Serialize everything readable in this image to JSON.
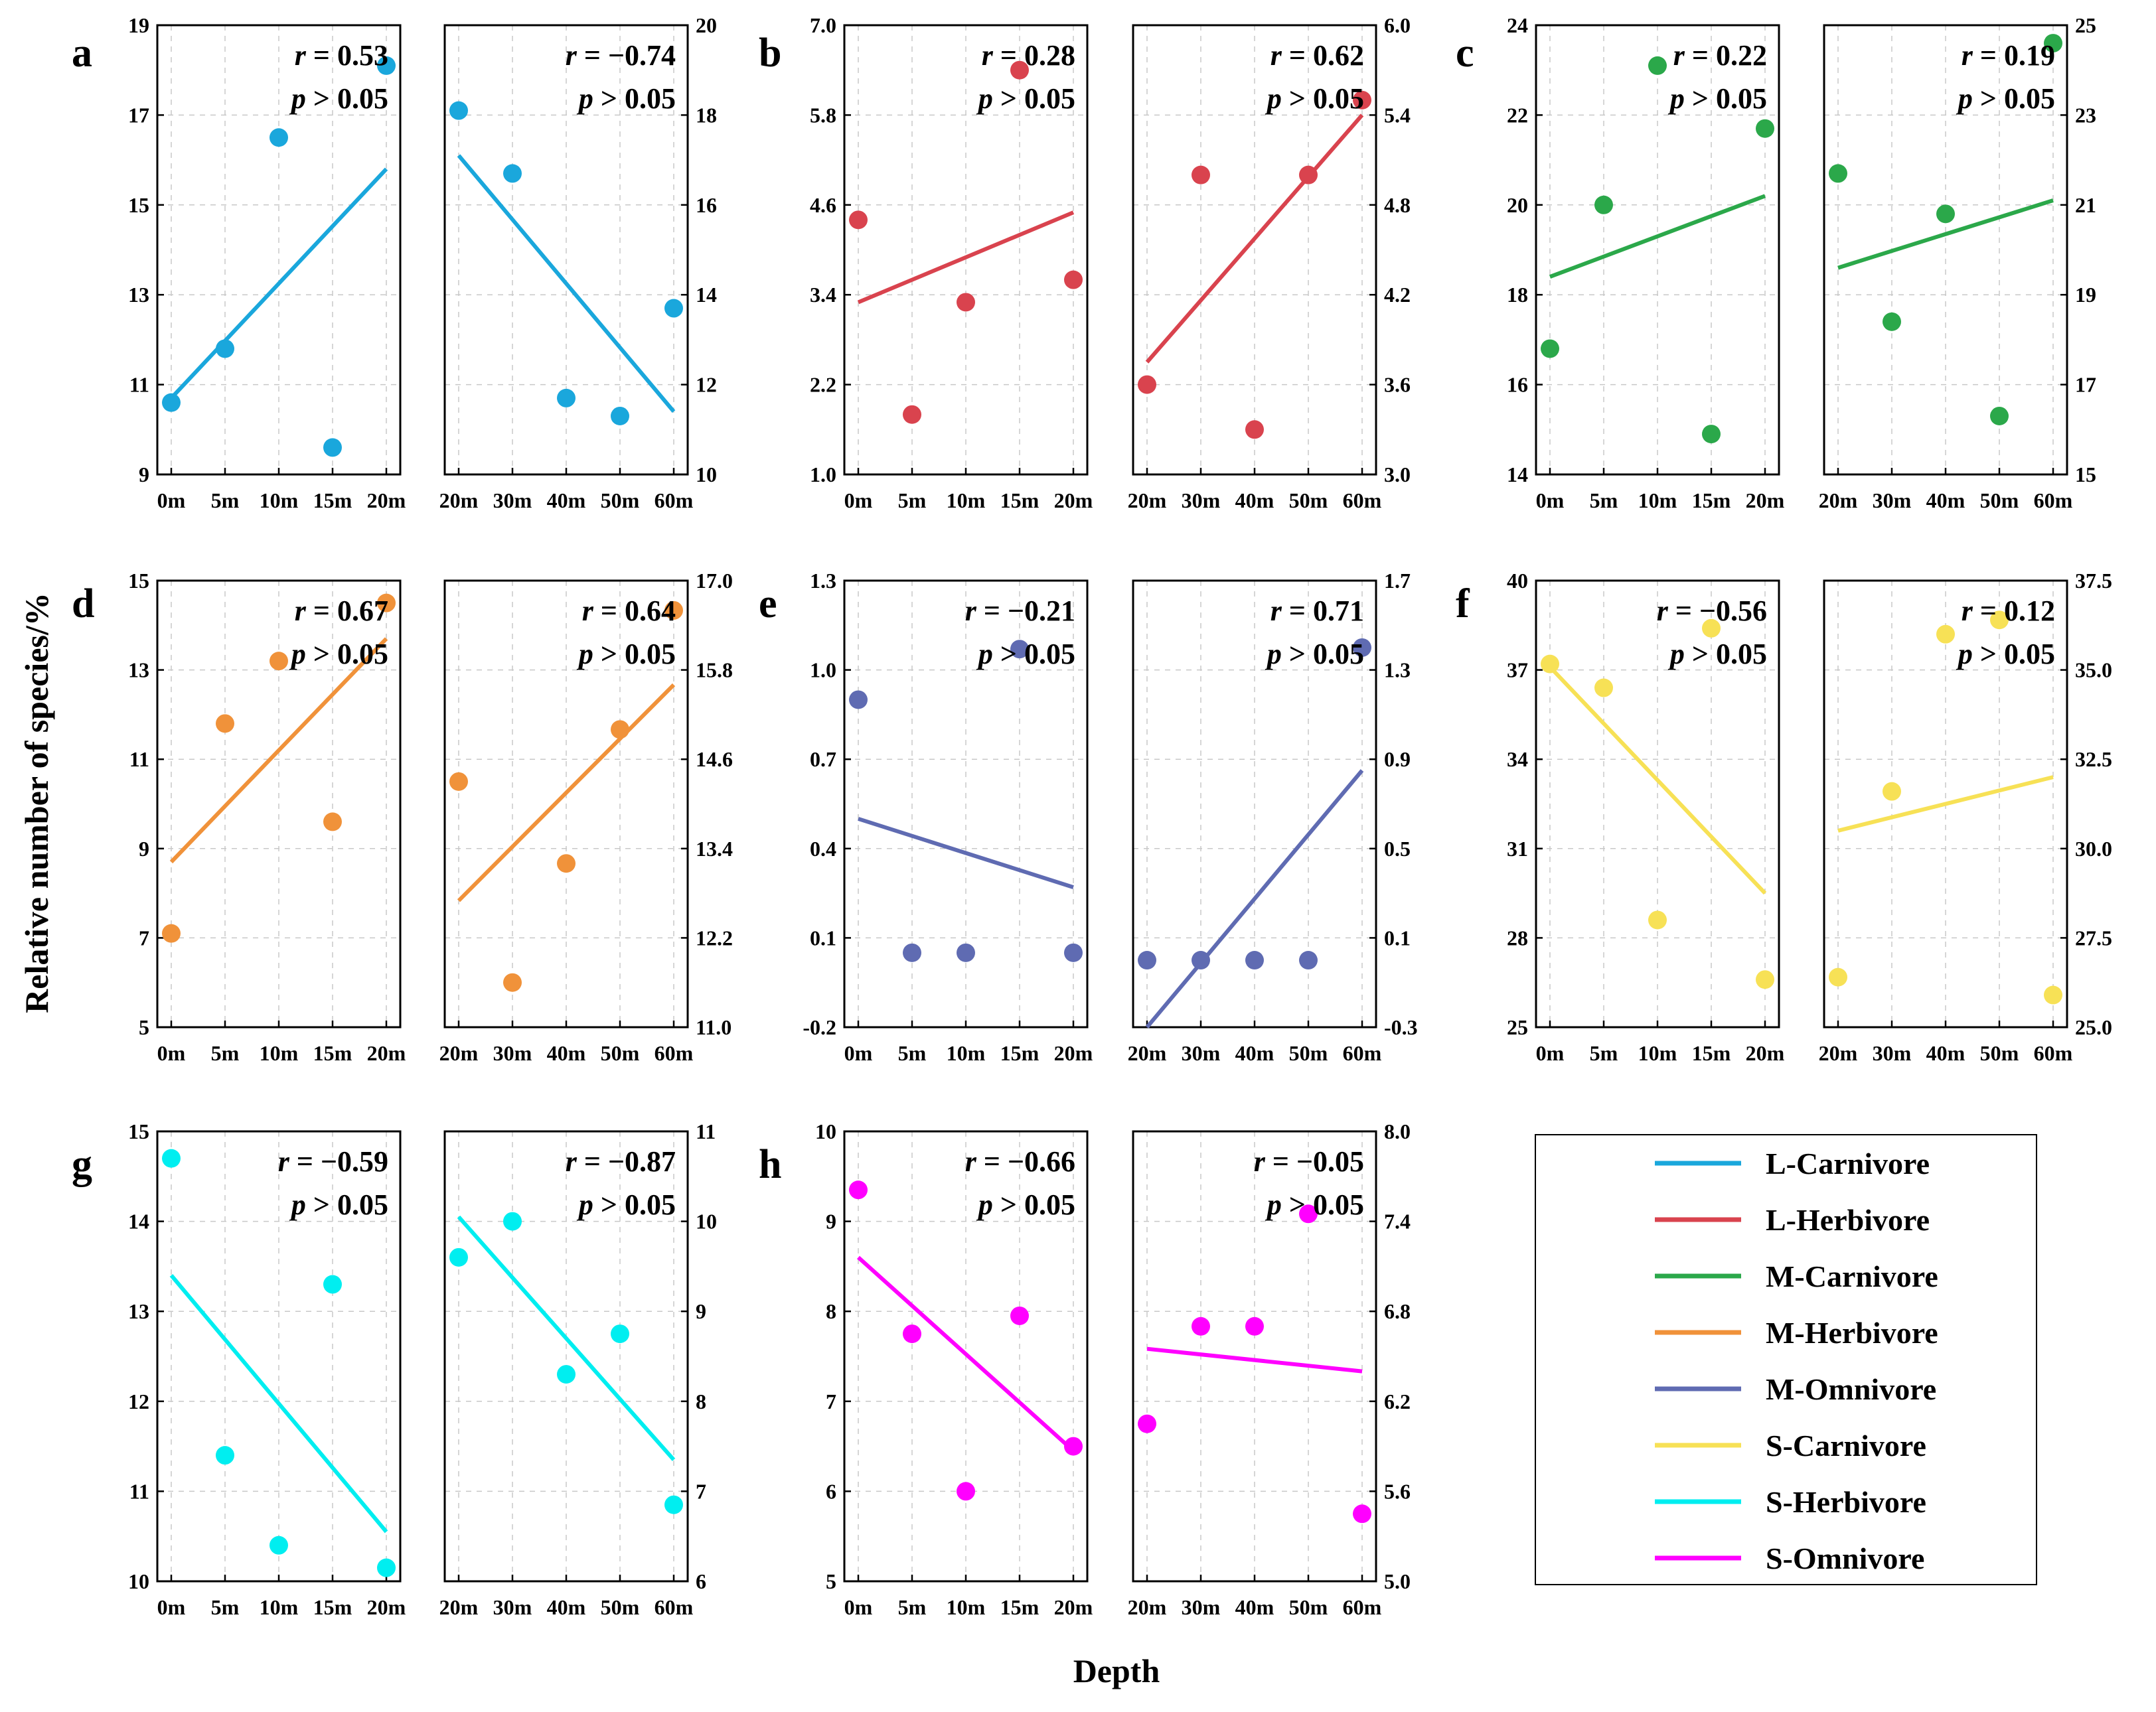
{
  "figure": {
    "ylabel": "Relative number of species/%",
    "xlabel": "Depth",
    "legend": [
      {
        "label": "L-Carnivore",
        "color": "#1aa7dc"
      },
      {
        "label": "L-Herbivore",
        "color": "#d9434e"
      },
      {
        "label": "M-Carnivore",
        "color": "#2ba84a"
      },
      {
        "label": "M-Herbivore",
        "color": "#f0923a"
      },
      {
        "label": "M-Omnivore",
        "color": "#5f6bb2"
      },
      {
        "label": "S-Carnivore",
        "color": "#f7e156"
      },
      {
        "label": "S-Herbivore",
        "color": "#00eef0"
      },
      {
        "label": "S-Omnivore",
        "color": "#ff00ff"
      }
    ]
  },
  "chart_data": [
    {
      "type": "scatter",
      "panel": "a",
      "group": "L-Carnivore",
      "side": "left",
      "color": "#1aa7dc",
      "categories": [
        "0m",
        "5m",
        "10m",
        "15m",
        "20m"
      ],
      "values": [
        10.6,
        11.8,
        16.5,
        9.6,
        18.1
      ],
      "fit": [
        10.7,
        15.8
      ],
      "ylim": [
        9,
        19
      ],
      "ticks": [
        "9",
        "11",
        "13",
        "15",
        "17",
        "19"
      ],
      "r": "r = 0.53",
      "p": "p > 0.05"
    },
    {
      "type": "scatter",
      "panel": "a",
      "group": "L-Carnivore",
      "side": "right",
      "color": "#1aa7dc",
      "categories": [
        "20m",
        "30m",
        "40m",
        "50m",
        "60m"
      ],
      "values": [
        18.1,
        16.7,
        11.7,
        11.3,
        13.7
      ],
      "fit": [
        17.1,
        11.4
      ],
      "ylim": [
        10,
        20
      ],
      "ticks": [
        "10",
        "12",
        "14",
        "16",
        "18",
        "20"
      ],
      "r": "r = −0.74",
      "p": "p > 0.05"
    },
    {
      "type": "scatter",
      "panel": "b",
      "group": "L-Herbivore",
      "side": "left",
      "color": "#d9434e",
      "categories": [
        "0m",
        "5m",
        "10m",
        "15m",
        "20m"
      ],
      "values": [
        4.4,
        1.8,
        3.3,
        6.4,
        3.6
      ],
      "fit": [
        3.3,
        4.5
      ],
      "ylim": [
        1.0,
        7.0
      ],
      "ticks": [
        "1.0",
        "2.2",
        "3.4",
        "4.6",
        "5.8",
        "7.0"
      ],
      "r": "r = 0.28",
      "p": "p > 0.05"
    },
    {
      "type": "scatter",
      "panel": "b",
      "group": "L-Herbivore",
      "side": "right",
      "color": "#d9434e",
      "categories": [
        "20m",
        "30m",
        "40m",
        "50m",
        "60m"
      ],
      "values": [
        3.6,
        5.0,
        3.3,
        5.0,
        5.5
      ],
      "fit": [
        3.75,
        5.4
      ],
      "ylim": [
        3.0,
        6.0
      ],
      "ticks": [
        "3.0",
        "3.6",
        "4.2",
        "4.8",
        "5.4",
        "6.0"
      ],
      "r": "r = 0.62",
      "p": "p > 0.05"
    },
    {
      "type": "scatter",
      "panel": "c",
      "group": "M-Carnivore",
      "side": "left",
      "color": "#2ba84a",
      "categories": [
        "0m",
        "5m",
        "10m",
        "15m",
        "20m"
      ],
      "values": [
        16.8,
        20.0,
        23.1,
        14.9,
        21.7
      ],
      "fit": [
        18.4,
        20.2
      ],
      "ylim": [
        14,
        24
      ],
      "ticks": [
        "14",
        "16",
        "18",
        "20",
        "22",
        "24"
      ],
      "r": "r = 0.22",
      "p": "p > 0.05"
    },
    {
      "type": "scatter",
      "panel": "c",
      "group": "M-Carnivore",
      "side": "right",
      "color": "#2ba84a",
      "categories": [
        "20m",
        "30m",
        "40m",
        "50m",
        "60m"
      ],
      "values": [
        21.7,
        18.4,
        20.8,
        16.3,
        24.6
      ],
      "fit": [
        19.6,
        21.1
      ],
      "ylim": [
        15,
        25
      ],
      "ticks": [
        "15",
        "17",
        "19",
        "21",
        "23",
        "25"
      ],
      "r": "r = 0.19",
      "p": "p > 0.05"
    },
    {
      "type": "scatter",
      "panel": "d",
      "group": "M-Herbivore",
      "side": "left",
      "color": "#f0923a",
      "categories": [
        "0m",
        "5m",
        "10m",
        "15m",
        "20m"
      ],
      "values": [
        7.1,
        11.8,
        13.2,
        9.6,
        14.5
      ],
      "fit": [
        8.7,
        13.7
      ],
      "ylim": [
        5,
        15
      ],
      "ticks": [
        "5",
        "7",
        "9",
        "11",
        "13",
        "15"
      ],
      "r": "r = 0.67",
      "p": "p > 0.05"
    },
    {
      "type": "scatter",
      "panel": "d",
      "group": "M-Herbivore",
      "side": "right",
      "color": "#f0923a",
      "categories": [
        "20m",
        "30m",
        "40m",
        "50m",
        "60m"
      ],
      "values": [
        14.3,
        11.6,
        13.2,
        15.0,
        16.6
      ],
      "fit": [
        12.7,
        15.6
      ],
      "ylim": [
        11.0,
        17.0
      ],
      "ticks": [
        "11.0",
        "12.2",
        "13.4",
        "14.6",
        "15.8",
        "17.0"
      ],
      "r": "r = 0.64",
      "p": "p > 0.05"
    },
    {
      "type": "scatter",
      "panel": "e",
      "group": "M-Omnivore",
      "side": "left",
      "color": "#5f6bb2",
      "categories": [
        "0m",
        "5m",
        "10m",
        "15m",
        "20m"
      ],
      "values": [
        0.9,
        0.05,
        0.05,
        1.07,
        0.05
      ],
      "fit": [
        0.5,
        0.27
      ],
      "ylim": [
        -0.2,
        1.3
      ],
      "ticks": [
        "-0.2",
        "0.1",
        "0.4",
        "0.7",
        "1.0",
        "1.3"
      ],
      "r": "r = −0.21",
      "p": "p > 0.05"
    },
    {
      "type": "scatter",
      "panel": "e",
      "group": "M-Omnivore",
      "side": "right",
      "color": "#5f6bb2",
      "categories": [
        "20m",
        "30m",
        "40m",
        "50m",
        "60m"
      ],
      "values": [
        0.0,
        0.0,
        0.0,
        0.0,
        1.4
      ],
      "fit": [
        -0.3,
        0.85
      ],
      "ylim": [
        -0.3,
        1.7
      ],
      "ticks": [
        "-0.3",
        "0.1",
        "0.5",
        "0.9",
        "1.3",
        "1.7"
      ],
      "r": "r = 0.71",
      "p": "p > 0.05"
    },
    {
      "type": "scatter",
      "panel": "f",
      "group": "S-Carnivore",
      "side": "left",
      "color": "#f7e156",
      "categories": [
        "0m",
        "5m",
        "10m",
        "15m",
        "20m"
      ],
      "values": [
        37.2,
        36.4,
        28.6,
        38.4,
        26.6
      ],
      "fit": [
        37.1,
        29.5
      ],
      "ylim": [
        25,
        40
      ],
      "ticks": [
        "25",
        "28",
        "31",
        "34",
        "37",
        "40"
      ],
      "r": "r = −0.56",
      "p": "p > 0.05"
    },
    {
      "type": "scatter",
      "panel": "f",
      "group": "S-Carnivore",
      "side": "right",
      "color": "#f7e156",
      "categories": [
        "20m",
        "30m",
        "40m",
        "50m",
        "60m"
      ],
      "values": [
        26.4,
        31.6,
        36.0,
        36.4,
        25.9
      ],
      "fit": [
        30.5,
        32.0
      ],
      "ylim": [
        25.0,
        37.5
      ],
      "ticks": [
        "25.0",
        "27.5",
        "30.0",
        "32.5",
        "35.0",
        "37.5"
      ],
      "r": "r = 0.12",
      "p": "p > 0.05"
    },
    {
      "type": "scatter",
      "panel": "g",
      "group": "S-Herbivore",
      "side": "left",
      "color": "#00eef0",
      "categories": [
        "0m",
        "5m",
        "10m",
        "15m",
        "20m"
      ],
      "values": [
        14.7,
        11.4,
        10.4,
        13.3,
        10.15
      ],
      "fit": [
        13.4,
        10.55
      ],
      "ylim": [
        10,
        15
      ],
      "ticks": [
        "10",
        "11",
        "12",
        "13",
        "14",
        "15"
      ],
      "r": "r = −0.59",
      "p": "p > 0.05"
    },
    {
      "type": "scatter",
      "panel": "g",
      "group": "S-Herbivore",
      "side": "right",
      "color": "#00eef0",
      "categories": [
        "20m",
        "30m",
        "40m",
        "50m",
        "60m"
      ],
      "values": [
        9.6,
        10.0,
        8.3,
        8.75,
        6.85
      ],
      "fit": [
        10.05,
        7.35
      ],
      "ylim": [
        6,
        11
      ],
      "ticks": [
        "6",
        "7",
        "8",
        "9",
        "10",
        "11"
      ],
      "r": "r = −0.87",
      "p": "p > 0.05"
    },
    {
      "type": "scatter",
      "panel": "h",
      "group": "S-Omnivore",
      "side": "left",
      "color": "#ff00ff",
      "categories": [
        "0m",
        "5m",
        "10m",
        "15m",
        "20m"
      ],
      "values": [
        9.35,
        7.75,
        6.0,
        7.95,
        6.5
      ],
      "fit": [
        8.6,
        6.45
      ],
      "ylim": [
        5,
        10
      ],
      "ticks": [
        "5",
        "6",
        "7",
        "8",
        "9",
        "10"
      ],
      "r": "r = −0.66",
      "p": "p > 0.05"
    },
    {
      "type": "scatter",
      "panel": "h",
      "group": "S-Omnivore",
      "side": "right",
      "color": "#ff00ff",
      "categories": [
        "20m",
        "30m",
        "40m",
        "50m",
        "60m"
      ],
      "values": [
        6.05,
        6.7,
        6.7,
        7.45,
        5.45
      ],
      "fit": [
        6.55,
        6.4
      ],
      "ylim": [
        5.0,
        8.0
      ],
      "ticks": [
        "5.0",
        "5.6",
        "6.2",
        "6.8",
        "7.4",
        "8.0"
      ],
      "r": "r = −0.05",
      "p": "p > 0.05"
    }
  ]
}
